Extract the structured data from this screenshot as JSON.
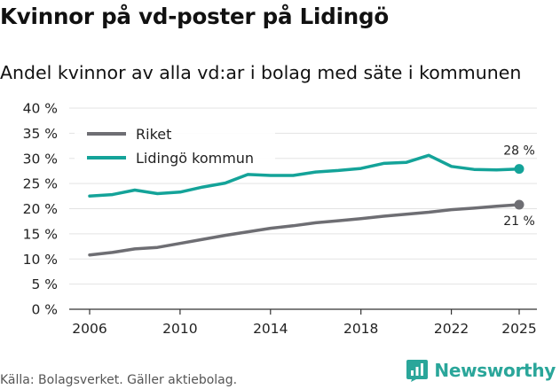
{
  "title": "Kvinnor på vd-poster på Lidingö",
  "subtitle": "Andel kvinnor av alla vd:ar i bolag med säte i kommunen",
  "source": "Källa: Bolagsverket. Gäller aktiebolag.",
  "brand": "Newsworthy",
  "chart_data": {
    "type": "line",
    "x": [
      2006,
      2007,
      2008,
      2009,
      2010,
      2011,
      2012,
      2013,
      2014,
      2015,
      2016,
      2017,
      2018,
      2019,
      2020,
      2021,
      2022,
      2023,
      2024,
      2025
    ],
    "series": [
      {
        "name": "Riket",
        "color": "#6e6e73",
        "values": [
          10.8,
          11.3,
          12.0,
          12.3,
          13.1,
          13.9,
          14.7,
          15.4,
          16.1,
          16.6,
          17.2,
          17.6,
          18.0,
          18.5,
          18.9,
          19.3,
          19.8,
          20.1,
          20.5,
          20.8
        ],
        "end_label": "21 %"
      },
      {
        "name": "Lidingö kommun",
        "color": "#14a399",
        "values": [
          22.5,
          22.8,
          23.7,
          23.0,
          23.3,
          24.3,
          25.1,
          26.8,
          26.6,
          26.6,
          27.3,
          27.6,
          28.0,
          29.0,
          29.2,
          30.6,
          28.4,
          27.8,
          27.7,
          27.9
        ],
        "end_label": "28 %"
      }
    ],
    "xticks": [
      2006,
      2010,
      2014,
      2018,
      2022,
      2025
    ],
    "yticks": [
      0,
      5,
      10,
      15,
      20,
      25,
      30,
      35,
      40
    ],
    "ytick_labels": [
      "0 %",
      "5 %",
      "10 %",
      "15 %",
      "20 %",
      "25 %",
      "30 %",
      "35 %",
      "40 %"
    ],
    "ylim": [
      0,
      40
    ],
    "xlim": [
      2006,
      2025
    ],
    "grid": "horizontal",
    "legend": "top-left"
  }
}
